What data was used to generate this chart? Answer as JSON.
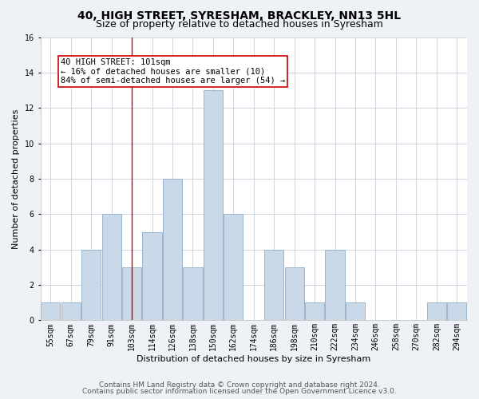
{
  "title": "40, HIGH STREET, SYRESHAM, BRACKLEY, NN13 5HL",
  "subtitle": "Size of property relative to detached houses in Syresham",
  "xlabel": "Distribution of detached houses by size in Syresham",
  "ylabel": "Number of detached properties",
  "bin_labels": [
    "55sqm",
    "67sqm",
    "79sqm",
    "91sqm",
    "103sqm",
    "114sqm",
    "126sqm",
    "138sqm",
    "150sqm",
    "162sqm",
    "174sqm",
    "186sqm",
    "198sqm",
    "210sqm",
    "222sqm",
    "234sqm",
    "246sqm",
    "258sqm",
    "270sqm",
    "282sqm",
    "294sqm"
  ],
  "counts": [
    1,
    1,
    4,
    6,
    3,
    5,
    8,
    3,
    13,
    6,
    0,
    4,
    3,
    1,
    4,
    1,
    0,
    0,
    0,
    1,
    1
  ],
  "bar_color": "#c9d9e8",
  "bar_edge_color": "#9ab5cc",
  "vline_index": 4,
  "vline_color": "#cc0000",
  "annotation_text": "40 HIGH STREET: 101sqm\n← 16% of detached houses are smaller (10)\n84% of semi-detached houses are larger (54) →",
  "annotation_box_color": "#ffffff",
  "annotation_box_edge_color": "#cc0000",
  "ylim": [
    0,
    16
  ],
  "yticks": [
    0,
    2,
    4,
    6,
    8,
    10,
    12,
    14,
    16
  ],
  "footer_line1": "Contains HM Land Registry data © Crown copyright and database right 2024.",
  "footer_line2": "Contains public sector information licensed under the Open Government Licence v3.0.",
  "bg_color": "#eef2f7",
  "plot_bg_color": "#ffffff",
  "grid_color": "#c8d0da",
  "title_fontsize": 10,
  "subtitle_fontsize": 9,
  "xlabel_fontsize": 8,
  "ylabel_fontsize": 8,
  "tick_fontsize": 7,
  "annotation_fontsize": 7.5,
  "footer_fontsize": 6.5
}
